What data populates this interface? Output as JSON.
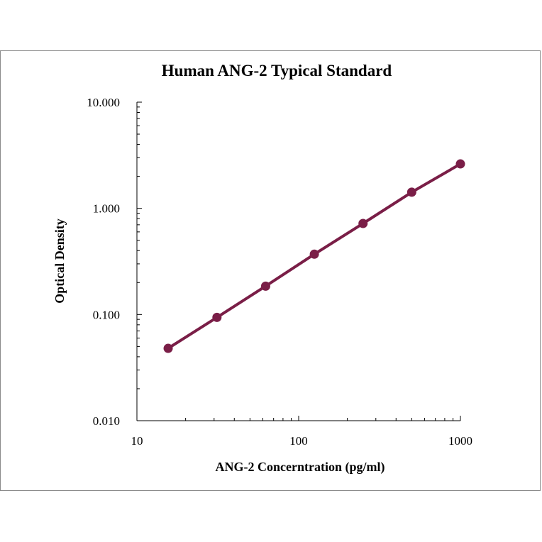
{
  "chart_data": {
    "type": "line",
    "title": "Human ANG-2 Typical Standard",
    "xlabel": "ANG-2 Concerntration (pg/ml)",
    "ylabel": "Optical Density",
    "x_scale": "log",
    "y_scale": "log",
    "xlim": [
      10,
      1000
    ],
    "ylim": [
      0.01,
      10
    ],
    "x_ticks": [
      10,
      100,
      1000
    ],
    "x_tick_labels": [
      "10",
      "100",
      "1000"
    ],
    "y_ticks": [
      0.01,
      0.1,
      1,
      10
    ],
    "y_tick_labels": [
      "0.010",
      "0.100",
      "1.000",
      "10.000"
    ],
    "grid": false,
    "legend": "none",
    "series": [
      {
        "color": "#7a1e47",
        "x": [
          15.6,
          31.25,
          62.5,
          125,
          250,
          500,
          1000
        ],
        "y": [
          0.048,
          0.094,
          0.185,
          0.37,
          0.72,
          1.42,
          2.62
        ]
      }
    ]
  }
}
